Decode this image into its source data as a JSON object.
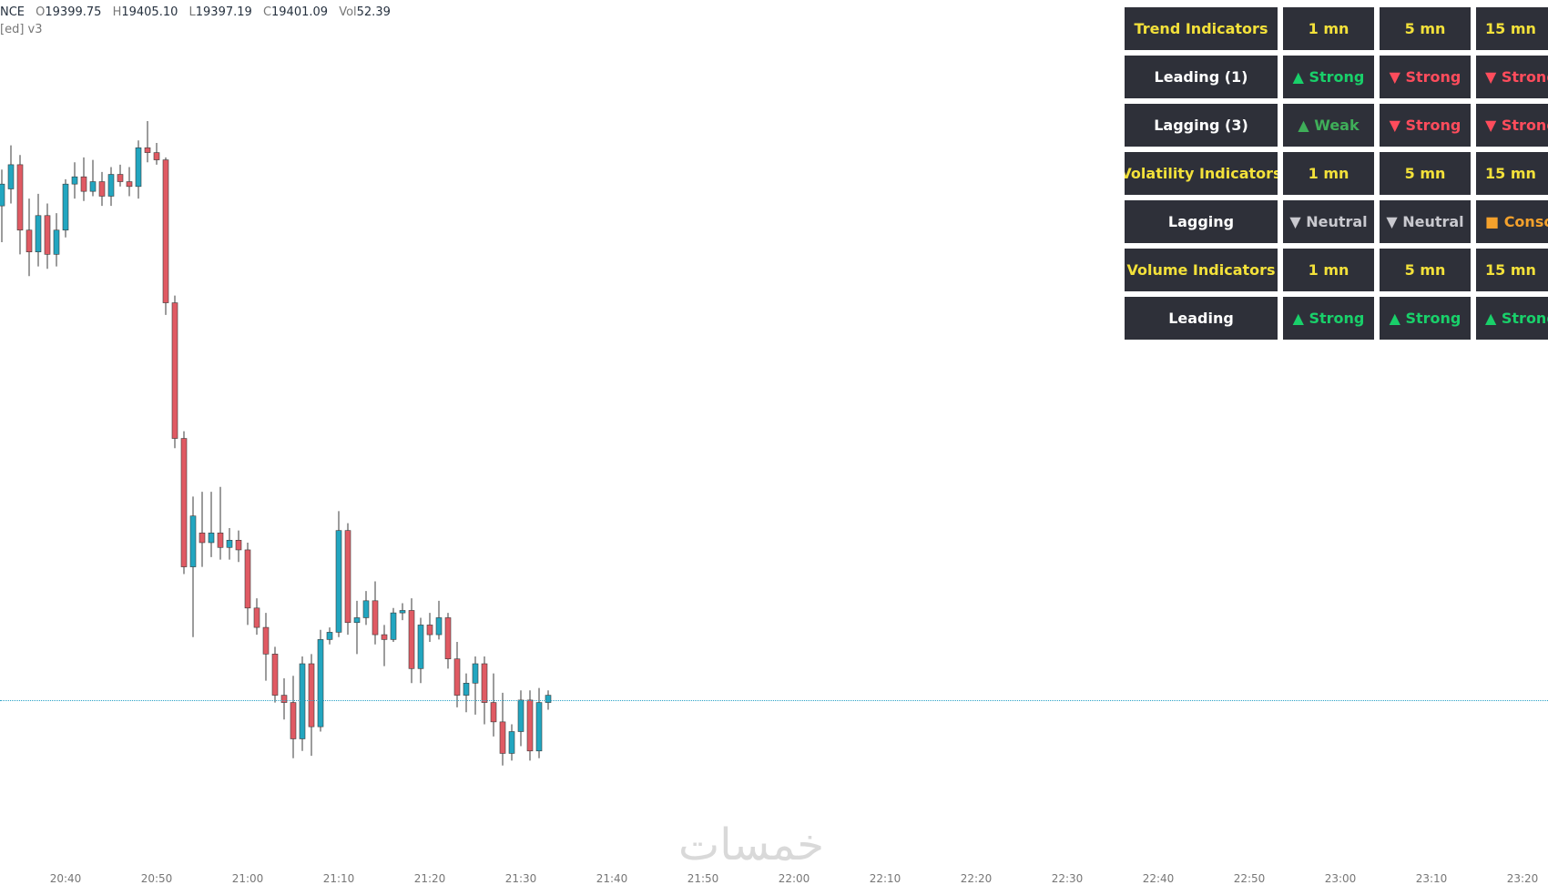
{
  "legend": {
    "symbol": "NCE",
    "open_key": "O",
    "open": "19399.75",
    "high_key": "H",
    "high": "19405.10",
    "low_key": "L",
    "low": "19397.19",
    "close_key": "C",
    "close": "19401.09",
    "vol_key": "Vol",
    "vol": "52.39",
    "indicator": "[ed] v3"
  },
  "table": {
    "rows": [
      {
        "type": "header",
        "cells": [
          "Trend Indicators",
          "1 mn",
          "5 mn",
          "15 mn"
        ]
      },
      {
        "type": "row",
        "label": "Leading (1)",
        "cells": [
          {
            "text": "▲ Strong",
            "cls": "up"
          },
          {
            "text": "▼ Strong",
            "cls": "down"
          },
          {
            "text": "▼ Strong",
            "cls": "down"
          }
        ]
      },
      {
        "type": "row",
        "label": "Lagging (3)",
        "cells": [
          {
            "text": "▲ Weak",
            "cls": "weak"
          },
          {
            "text": "▼ Strong",
            "cls": "down"
          },
          {
            "text": "▼ Strong",
            "cls": "down"
          }
        ]
      },
      {
        "type": "header",
        "cells": [
          "Volatility Indicators",
          "1 mn",
          "5 mn",
          "15 mn"
        ]
      },
      {
        "type": "row",
        "label": "Lagging",
        "cells": [
          {
            "text": "▼ Neutral",
            "cls": "neutral"
          },
          {
            "text": "▼ Neutral",
            "cls": "neutral"
          },
          {
            "text": "■ Consolidation",
            "cls": "cons"
          }
        ]
      },
      {
        "type": "header",
        "cells": [
          "Volume Indicators",
          "1 mn",
          "5 mn",
          "15 mn"
        ]
      },
      {
        "type": "row",
        "label": "Leading",
        "cells": [
          {
            "text": "▲ Strong",
            "cls": "up"
          },
          {
            "text": "▲ Strong",
            "cls": "up"
          },
          {
            "text": "▲ Strong",
            "cls": "up"
          }
        ]
      }
    ]
  },
  "time_axis": [
    "20:40",
    "20:50",
    "21:00",
    "21:10",
    "21:20",
    "21:30",
    "21:40",
    "21:50",
    "22:00",
    "22:10",
    "22:20",
    "22:30",
    "22:40",
    "22:50",
    "23:00",
    "23:10",
    "23:20"
  ],
  "watermark": "خمسات",
  "colors": {
    "up": "#22a6c0",
    "down": "#e05a63",
    "price_line": "#2aa3c7"
  },
  "chart_data": {
    "type": "candlestick",
    "interval": "1 mn",
    "price_line": 19401.09,
    "candles": [
      {
        "o": 19421.5,
        "h": 19423.0,
        "l": 19420.0,
        "c": 19422.4
      },
      {
        "o": 19422.2,
        "h": 19424.0,
        "l": 19421.6,
        "c": 19423.2
      },
      {
        "o": 19423.2,
        "h": 19423.6,
        "l": 19419.5,
        "c": 19420.5
      },
      {
        "o": 19420.5,
        "h": 19421.8,
        "l": 19418.6,
        "c": 19419.6
      },
      {
        "o": 19419.6,
        "h": 19422.0,
        "l": 19419.0,
        "c": 19421.1
      },
      {
        "o": 19421.1,
        "h": 19421.6,
        "l": 19418.9,
        "c": 19419.5
      },
      {
        "o": 19419.5,
        "h": 19421.2,
        "l": 19419.0,
        "c": 19420.5
      },
      {
        "o": 19420.5,
        "h": 19422.6,
        "l": 19420.2,
        "c": 19422.4
      },
      {
        "o": 19422.4,
        "h": 19423.3,
        "l": 19421.8,
        "c": 19422.7
      },
      {
        "o": 19422.7,
        "h": 19423.5,
        "l": 19421.7,
        "c": 19422.1
      },
      {
        "o": 19422.1,
        "h": 19423.4,
        "l": 19421.9,
        "c": 19422.5
      },
      {
        "o": 19422.5,
        "h": 19422.9,
        "l": 19421.5,
        "c": 19421.9
      },
      {
        "o": 19421.9,
        "h": 19423.1,
        "l": 19421.5,
        "c": 19422.8
      },
      {
        "o": 19422.8,
        "h": 19423.2,
        "l": 19422.3,
        "c": 19422.5
      },
      {
        "o": 19422.5,
        "h": 19423.1,
        "l": 19421.9,
        "c": 19422.3
      },
      {
        "o": 19422.3,
        "h": 19424.2,
        "l": 19421.8,
        "c": 19423.9
      },
      {
        "o": 19423.9,
        "h": 19425.0,
        "l": 19423.3,
        "c": 19423.7
      },
      {
        "o": 19423.7,
        "h": 19424.1,
        "l": 19423.2,
        "c": 19423.4
      },
      {
        "o": 19423.4,
        "h": 19423.5,
        "l": 19417.0,
        "c": 19417.5
      },
      {
        "o": 19417.5,
        "h": 19417.8,
        "l": 19411.5,
        "c": 19411.9
      },
      {
        "o": 19411.9,
        "h": 19412.2,
        "l": 19406.3,
        "c": 19406.6
      },
      {
        "o": 19406.6,
        "h": 19409.5,
        "l": 19403.7,
        "c": 19408.7
      },
      {
        "o": 19408.0,
        "h": 19409.7,
        "l": 19406.6,
        "c": 19407.6
      },
      {
        "o": 19407.6,
        "h": 19409.7,
        "l": 19407.0,
        "c": 19408.0
      },
      {
        "o": 19408.0,
        "h": 19409.9,
        "l": 19406.9,
        "c": 19407.4
      },
      {
        "o": 19407.4,
        "h": 19408.2,
        "l": 19406.9,
        "c": 19407.7
      },
      {
        "o": 19407.7,
        "h": 19408.1,
        "l": 19406.8,
        "c": 19407.3
      },
      {
        "o": 19407.3,
        "h": 19407.6,
        "l": 19404.2,
        "c": 19404.9
      },
      {
        "o": 19404.9,
        "h": 19405.3,
        "l": 19403.8,
        "c": 19404.1
      },
      {
        "o": 19404.1,
        "h": 19404.7,
        "l": 19401.9,
        "c": 19403.0
      },
      {
        "o": 19403.0,
        "h": 19403.3,
        "l": 19401.0,
        "c": 19401.3
      },
      {
        "o": 19401.3,
        "h": 19402.0,
        "l": 19400.3,
        "c": 19401.0
      },
      {
        "o": 19401.0,
        "h": 19402.1,
        "l": 19398.7,
        "c": 19399.5
      },
      {
        "o": 19399.5,
        "h": 19402.9,
        "l": 19399.0,
        "c": 19402.6
      },
      {
        "o": 19402.6,
        "h": 19403.0,
        "l": 19398.8,
        "c": 19400.0
      },
      {
        "o": 19400.0,
        "h": 19404.0,
        "l": 19399.8,
        "c": 19403.6
      },
      {
        "o": 19403.6,
        "h": 19404.1,
        "l": 19403.4,
        "c": 19403.9
      },
      {
        "o": 19403.9,
        "h": 19408.9,
        "l": 19403.7,
        "c": 19408.1
      },
      {
        "o": 19408.1,
        "h": 19408.4,
        "l": 19403.8,
        "c": 19404.3
      },
      {
        "o": 19404.3,
        "h": 19405.2,
        "l": 19403.0,
        "c": 19404.5
      },
      {
        "o": 19404.5,
        "h": 19405.6,
        "l": 19404.2,
        "c": 19405.2
      },
      {
        "o": 19405.2,
        "h": 19406.0,
        "l": 19403.4,
        "c": 19403.8
      },
      {
        "o": 19403.8,
        "h": 19404.2,
        "l": 19402.5,
        "c": 19403.6
      },
      {
        "o": 19403.6,
        "h": 19404.9,
        "l": 19403.5,
        "c": 19404.7
      },
      {
        "o": 19404.7,
        "h": 19405.1,
        "l": 19404.4,
        "c": 19404.8
      },
      {
        "o": 19404.8,
        "h": 19405.3,
        "l": 19401.8,
        "c": 19402.4
      },
      {
        "o": 19402.4,
        "h": 19404.5,
        "l": 19401.8,
        "c": 19404.2
      },
      {
        "o": 19404.2,
        "h": 19404.7,
        "l": 19403.5,
        "c": 19403.8
      },
      {
        "o": 19403.8,
        "h": 19405.2,
        "l": 19403.6,
        "c": 19404.5
      },
      {
        "o": 19404.5,
        "h": 19404.7,
        "l": 19402.4,
        "c": 19402.8
      },
      {
        "o": 19402.8,
        "h": 19403.5,
        "l": 19400.8,
        "c": 19401.3
      },
      {
        "o": 19401.3,
        "h": 19402.2,
        "l": 19400.6,
        "c": 19401.8
      },
      {
        "o": 19401.8,
        "h": 19402.9,
        "l": 19400.5,
        "c": 19402.6
      },
      {
        "o": 19402.6,
        "h": 19402.9,
        "l": 19400.1,
        "c": 19401.0
      },
      {
        "o": 19401.0,
        "h": 19402.2,
        "l": 19399.6,
        "c": 19400.2
      },
      {
        "o": 19400.2,
        "h": 19401.4,
        "l": 19398.4,
        "c": 19398.9
      },
      {
        "o": 19398.9,
        "h": 19400.1,
        "l": 19398.6,
        "c": 19399.8
      },
      {
        "o": 19399.8,
        "h": 19401.5,
        "l": 19399.2,
        "c": 19401.1
      },
      {
        "o": 19401.1,
        "h": 19401.5,
        "l": 19398.6,
        "c": 19399.0
      },
      {
        "o": 19399.0,
        "h": 19401.6,
        "l": 19398.7,
        "c": 19401.0
      },
      {
        "o": 19401.0,
        "h": 19401.5,
        "l": 19400.7,
        "c": 19401.3
      }
    ]
  }
}
